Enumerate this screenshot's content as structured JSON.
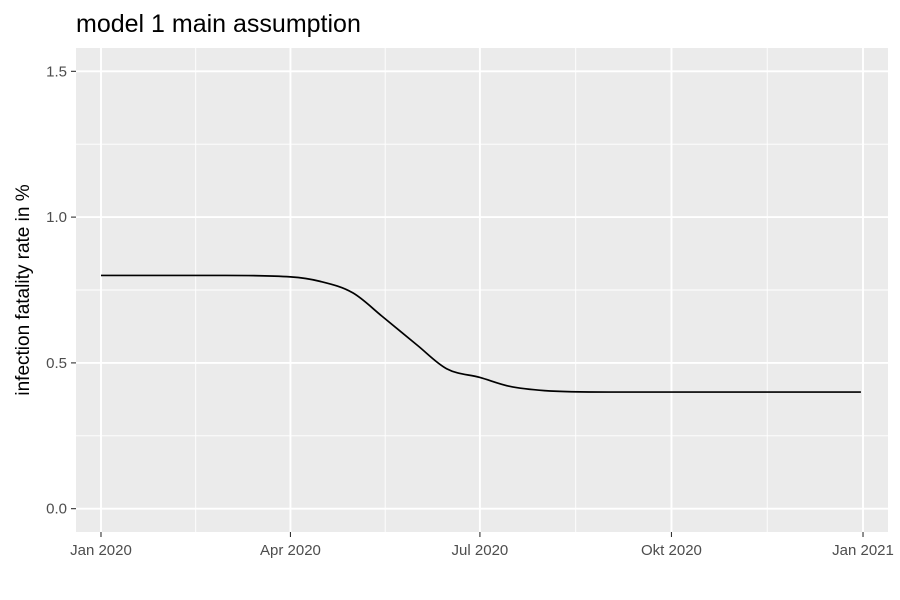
{
  "chart_data": {
    "type": "line",
    "title": "model 1 main assumption",
    "xlabel": "",
    "ylabel": "infection fatality rate in %",
    "x_tick_labels": [
      "Jan 2020",
      "Apr 2020",
      "Jul 2020",
      "Okt 2020",
      "Jan 2021"
    ],
    "x_ticks": [
      "2020-01-01",
      "2020-04-01",
      "2020-07-01",
      "2020-10-01",
      "2021-01-01"
    ],
    "xlim": [
      "2019-12-20",
      "2021-01-13"
    ],
    "y_ticks": [
      0.0,
      0.5,
      1.0,
      1.5
    ],
    "y_tick_labels": [
      "0.0",
      "0.5",
      "1.0",
      "1.5"
    ],
    "ylim": [
      -0.08,
      1.58
    ],
    "grid": true,
    "background": "#ebebeb",
    "grid_color": "#ffffff",
    "line_color": "#000000",
    "series": [
      {
        "x": [
          "2020-01-01",
          "2020-02-01",
          "2020-03-01",
          "2020-04-01",
          "2020-04-15",
          "2020-05-01",
          "2020-05-15",
          "2020-06-01",
          "2020-06-15",
          "2020-07-01",
          "2020-07-15",
          "2020-08-01",
          "2020-09-01",
          "2020-10-01",
          "2020-11-01",
          "2020-12-01",
          "2020-12-31"
        ],
        "y": [
          0.8,
          0.8,
          0.8,
          0.795,
          0.78,
          0.74,
          0.66,
          0.56,
          0.48,
          0.45,
          0.42,
          0.405,
          0.4,
          0.4,
          0.4,
          0.4,
          0.4
        ]
      }
    ]
  }
}
